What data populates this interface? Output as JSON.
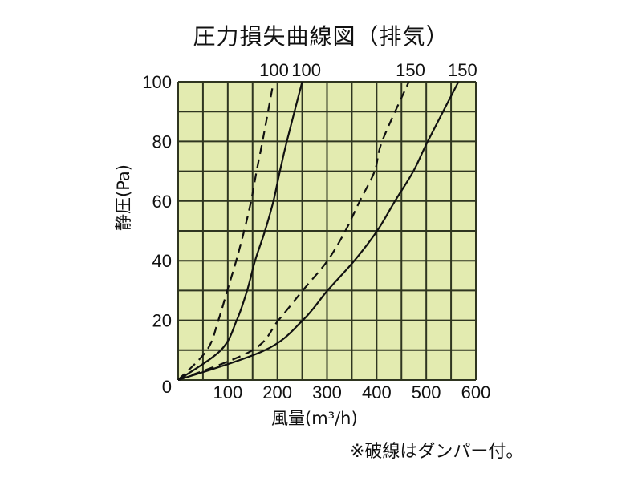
{
  "title": "圧力損失曲線図（排気）",
  "note": "※破線はダンパー付。",
  "colors": {
    "plot_bg": "#e3ebb0",
    "grid": "#2f3520",
    "line": "#111111"
  },
  "chart_data": {
    "type": "line",
    "title": "圧力損失曲線図（排気）",
    "xlabel": "風量(m³/h)",
    "ylabel": "静圧(Pa)",
    "xlim": [
      0,
      600
    ],
    "ylim": [
      0,
      100
    ],
    "x_ticks": [
      0,
      100,
      200,
      300,
      400,
      500,
      600
    ],
    "y_ticks": [
      0,
      20,
      40,
      60,
      80,
      100
    ],
    "grid": {
      "x_step": 50,
      "y_step": 10
    },
    "legend": "none",
    "annotations": [
      "※破線はダンパー付。"
    ],
    "series": [
      {
        "name": "100",
        "style": "dashed",
        "label": "100",
        "points": [
          [
            0,
            0
          ],
          [
            58,
            10
          ],
          [
            81,
            20
          ],
          [
            99,
            30
          ],
          [
            117,
            40
          ],
          [
            133,
            50
          ],
          [
            147,
            60
          ],
          [
            158,
            70
          ],
          [
            170,
            80
          ],
          [
            190,
            98
          ]
        ]
      },
      {
        "name": "100",
        "style": "solid",
        "label": "100",
        "points": [
          [
            0,
            0
          ],
          [
            86,
            10
          ],
          [
            118,
            20
          ],
          [
            139,
            30
          ],
          [
            155,
            40
          ],
          [
            175,
            50
          ],
          [
            192,
            60
          ],
          [
            205,
            70
          ],
          [
            219,
            80
          ],
          [
            250,
            100
          ]
        ]
      },
      {
        "name": "150",
        "style": "dashed",
        "label": "150",
        "points": [
          [
            0,
            0
          ],
          [
            150,
            10
          ],
          [
            202,
            20
          ],
          [
            251,
            30
          ],
          [
            301,
            40
          ],
          [
            337,
            50
          ],
          [
            366,
            60
          ],
          [
            396,
            70
          ],
          [
            411,
            80
          ],
          [
            465,
            100
          ]
        ]
      },
      {
        "name": "150",
        "style": "solid",
        "label": "150",
        "points": [
          [
            0,
            0
          ],
          [
            175,
            10
          ],
          [
            251,
            20
          ],
          [
            301,
            30
          ],
          [
            355,
            40
          ],
          [
            401,
            50
          ],
          [
            437,
            60
          ],
          [
            474,
            70
          ],
          [
            503,
            80
          ],
          [
            565,
            100
          ]
        ]
      }
    ]
  }
}
